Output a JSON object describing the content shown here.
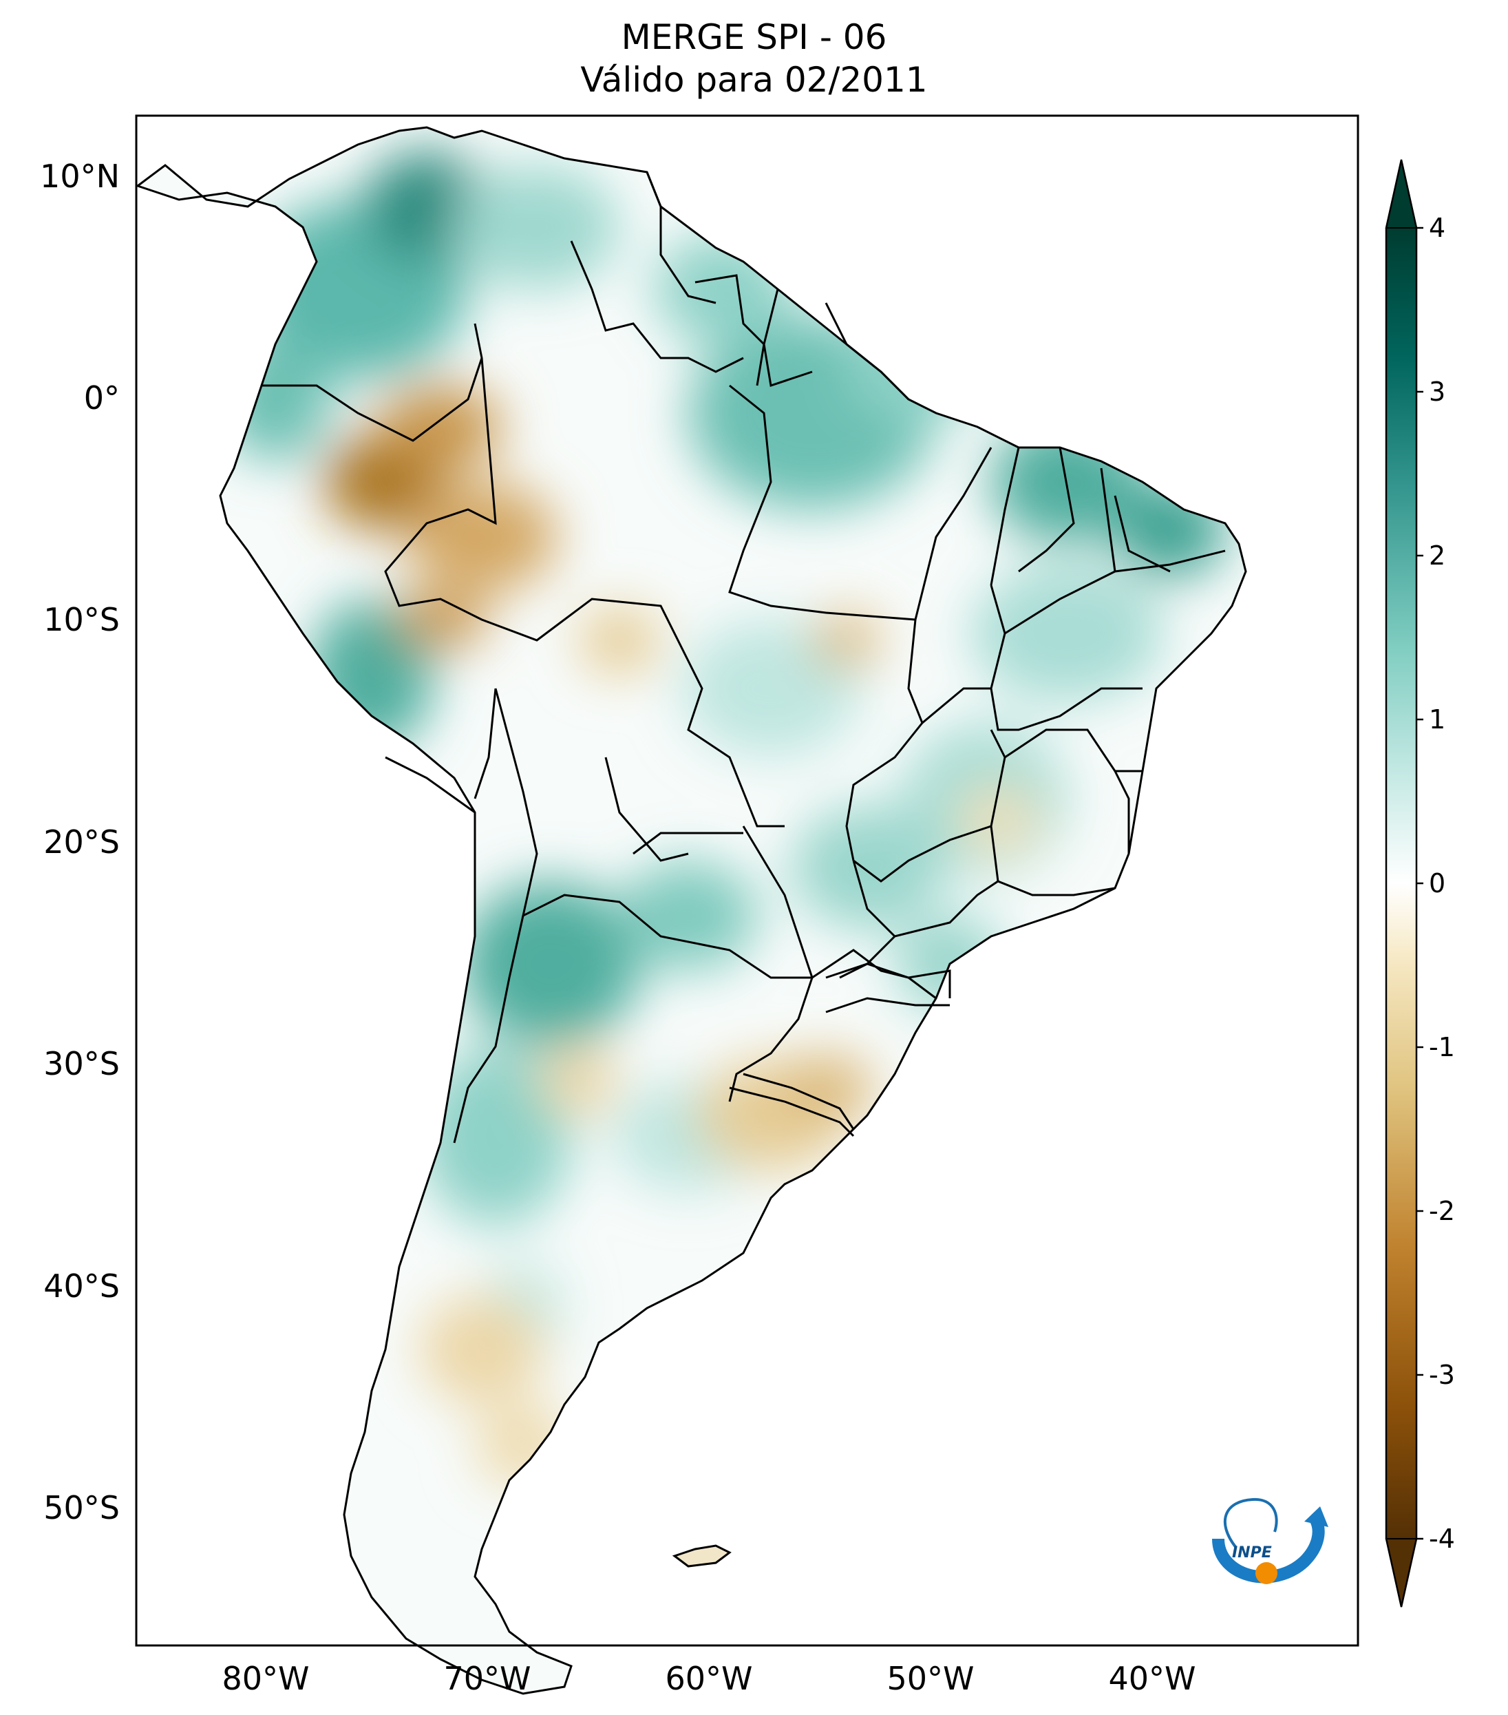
{
  "title": {
    "line1": "MERGE   SPI - 06",
    "line2": "Válido para 02/2011"
  },
  "map": {
    "lat_labels": [
      "10°N",
      "0°",
      "10°S",
      "20°S",
      "30°S",
      "40°S",
      "50°S"
    ],
    "lon_labels": [
      "80°W",
      "70°W",
      "60°W",
      "50°W",
      "40°W"
    ],
    "logo_text": "INPE"
  },
  "colorbar": {
    "ticks": [
      "4",
      "3",
      "2",
      "1",
      "0",
      "-1",
      "-2",
      "-3",
      "-4"
    ],
    "range": [
      -4,
      4
    ],
    "extend": "both",
    "colormap": [
      "#543005",
      "#8c510a",
      "#bf812d",
      "#dfc27d",
      "#f6e8c3",
      "#ffffff",
      "#c7eae5",
      "#80cdc1",
      "#35978f",
      "#01665e",
      "#003c30"
    ]
  }
}
